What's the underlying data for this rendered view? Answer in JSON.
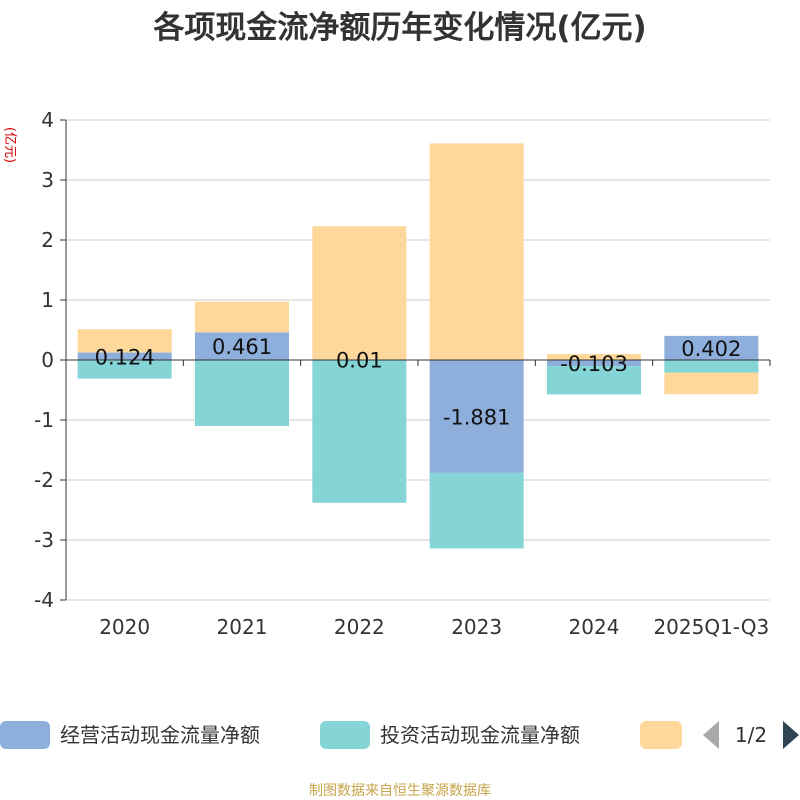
{
  "chart_data": {
    "type": "bar",
    "stacked": true,
    "title": "各项现金流净额历年变化情况(亿元)",
    "ylabel": "(亿元)",
    "ylim": [
      -4,
      4
    ],
    "yticks": [
      4,
      3,
      2,
      1,
      0,
      -1,
      -2,
      -3,
      -4
    ],
    "categories": [
      "2020",
      "2021",
      "2022",
      "2023",
      "2024",
      "2025Q1-Q3"
    ],
    "series": [
      {
        "name": "经营活动现金流量净额",
        "color": "#8eaedb",
        "values": [
          0.124,
          0.461,
          0.01,
          -1.881,
          -0.103,
          0.402
        ],
        "labels": [
          "0.124",
          "0.461",
          "0.01",
          "-1.881",
          "-0.103",
          "0.402"
        ]
      },
      {
        "name": "投资活动现金流量净额",
        "color": "#85d5d7",
        "values": [
          -0.31,
          -1.1,
          -2.38,
          -1.26,
          -0.47,
          -0.21
        ]
      },
      {
        "name": "",
        "color": "#fdd89a",
        "values": [
          0.39,
          0.51,
          2.22,
          3.61,
          0.1,
          -0.36
        ]
      }
    ],
    "legend": {
      "position": "bottom",
      "page": "1/2"
    },
    "source": "制图数据来自恒生聚源数据库"
  }
}
